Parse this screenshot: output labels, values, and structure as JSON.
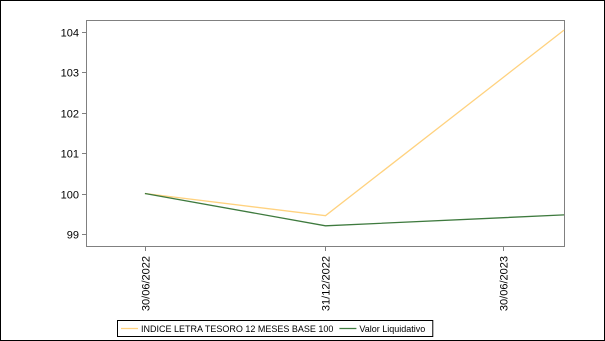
{
  "chart_data": {
    "type": "line",
    "categories": [
      "30/06/2022",
      "31/12/2022",
      "30/06/2023"
    ],
    "x_ticks": [
      "30/06/2022",
      "31/12/2022",
      "30/06/2023"
    ],
    "x_points": [
      "30/06/2022",
      "31/12/2022",
      "31/08/2023"
    ],
    "x_range": [
      "01/05/2022",
      "31/08/2023"
    ],
    "ylim": [
      98.7,
      104.3
    ],
    "y_ticks": [
      99,
      100,
      101,
      102,
      103,
      104
    ],
    "grid": false,
    "legend_position": "bottom",
    "series": [
      {
        "name": "INDICE LETRA TESORO 12 MESES BASE 100",
        "color": "#ffd27f",
        "values": [
          100.0,
          99.45,
          104.05
        ]
      },
      {
        "name": "Valor Liquidativo",
        "color": "#3e7a3e",
        "values": [
          100.0,
          99.2,
          99.47
        ]
      }
    ],
    "title": "",
    "xlabel": "",
    "ylabel": ""
  }
}
